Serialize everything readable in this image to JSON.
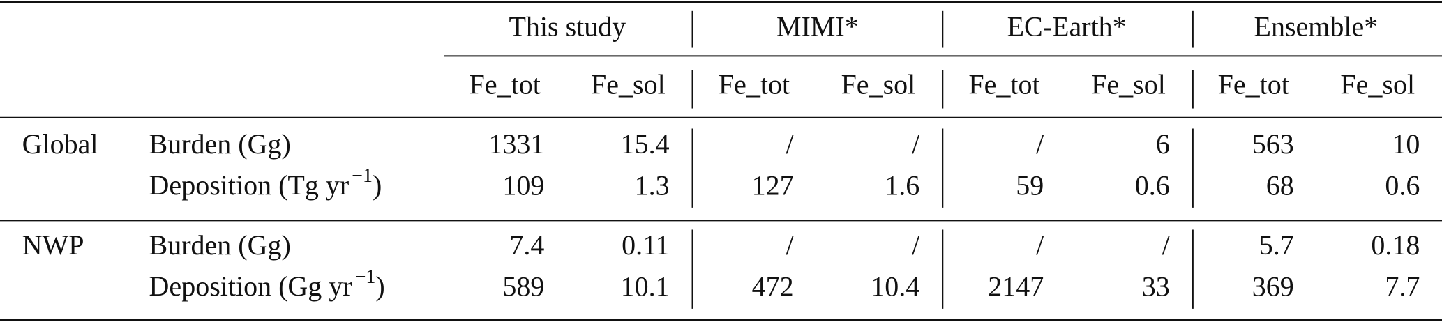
{
  "table": {
    "groups": [
      "This study",
      "MIMI*",
      "EC-Earth*",
      "Ensemble*"
    ],
    "subheaders": [
      "Fe_tot",
      "Fe_sol",
      "Fe_tot",
      "Fe_sol",
      "Fe_tot",
      "Fe_sol",
      "Fe_tot",
      "Fe_sol"
    ],
    "sections": [
      {
        "region": "Global",
        "rows": [
          {
            "label": [
              "Burden (Gg)"
            ],
            "values": [
              1331,
              15.4,
              "/",
              "/",
              "/",
              6,
              563,
              10
            ]
          },
          {
            "label": [
              "Deposition (Tg yr",
              "−1",
              ")"
            ],
            "values": [
              109,
              1.3,
              127,
              1.6,
              59,
              0.6,
              68,
              0.6
            ]
          }
        ]
      },
      {
        "region": "NWP",
        "rows": [
          {
            "label": [
              "Burden (Gg)"
            ],
            "values": [
              7.4,
              0.11,
              "/",
              "/",
              "/",
              "/",
              5.7,
              0.18
            ]
          },
          {
            "label": [
              "Deposition (Gg yr",
              "−1",
              ")"
            ],
            "values": [
              589,
              10.1,
              472,
              10.4,
              2147,
              33,
              369,
              7.7
            ]
          }
        ]
      }
    ]
  }
}
